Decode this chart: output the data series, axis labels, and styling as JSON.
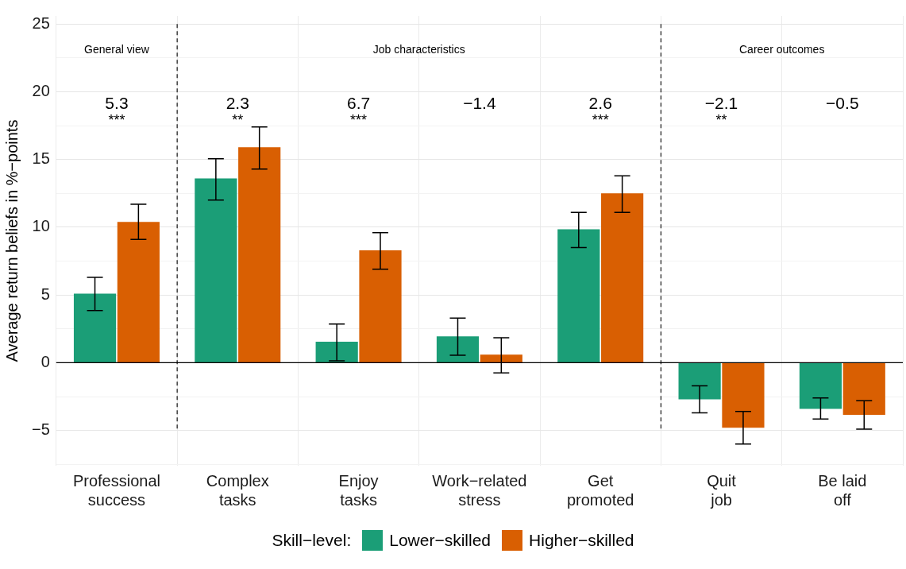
{
  "chart_data": {
    "type": "bar",
    "ylabel": "Average return beliefs in %−points",
    "legend_title": "Skill−level:",
    "legend": "bottom",
    "grid": true,
    "categories": [
      "Professional success",
      "Complex tasks",
      "Enjoy tasks",
      "Work−related stress",
      "Get promoted",
      "Quit job",
      "Be laid off"
    ],
    "ylim": [
      -7.6,
      25.6
    ],
    "yticks": [
      {
        "value": -7.5,
        "label": null
      },
      {
        "value": -5,
        "label": "−5"
      },
      {
        "value": -2.5,
        "label": null
      },
      0,
      {
        "value": 2.5,
        "label": null
      },
      5,
      {
        "value": 7.5,
        "label": null
      },
      10,
      {
        "value": 12.5,
        "label": null
      },
      15,
      {
        "value": 17.5,
        "label": null
      },
      20,
      {
        "value": 22.5,
        "label": null
      },
      25
    ],
    "series": [
      {
        "name": "Lower−skilled",
        "color": "#1b9e77",
        "values": [
          5.1,
          13.6,
          1.55,
          1.95,
          9.85,
          -2.7,
          -3.4
        ],
        "errors": [
          [
            3.85,
            6.3
          ],
          [
            12.0,
            15.05
          ],
          [
            0.15,
            2.85
          ],
          [
            0.55,
            3.3
          ],
          [
            8.5,
            11.1
          ],
          [
            -3.7,
            -1.7
          ],
          [
            -4.15,
            -2.6
          ]
        ]
      },
      {
        "name": "Higher−skilled",
        "color": "#d95f02",
        "values": [
          10.4,
          15.9,
          8.3,
          0.6,
          12.5,
          -4.8,
          -3.85
        ],
        "errors": [
          [
            9.1,
            11.7
          ],
          [
            14.3,
            17.4
          ],
          [
            6.9,
            9.6
          ],
          [
            -0.75,
            1.85
          ],
          [
            11.1,
            13.8
          ],
          [
            -6.0,
            -3.6
          ],
          [
            -4.9,
            -2.8
          ]
        ]
      }
    ],
    "ref_lines": [
      {
        "axis": "y",
        "value": 0,
        "color": "#000000",
        "line_style": "solid"
      }
    ],
    "annotations": [
      "General view",
      "Job characteristics",
      "Career outcomes",
      "5.3\n***",
      "2.3\n**",
      "6.7\n***",
      "−1.4",
      "2.6\n***",
      "−2.1\n**",
      "−0.5"
    ]
  }
}
